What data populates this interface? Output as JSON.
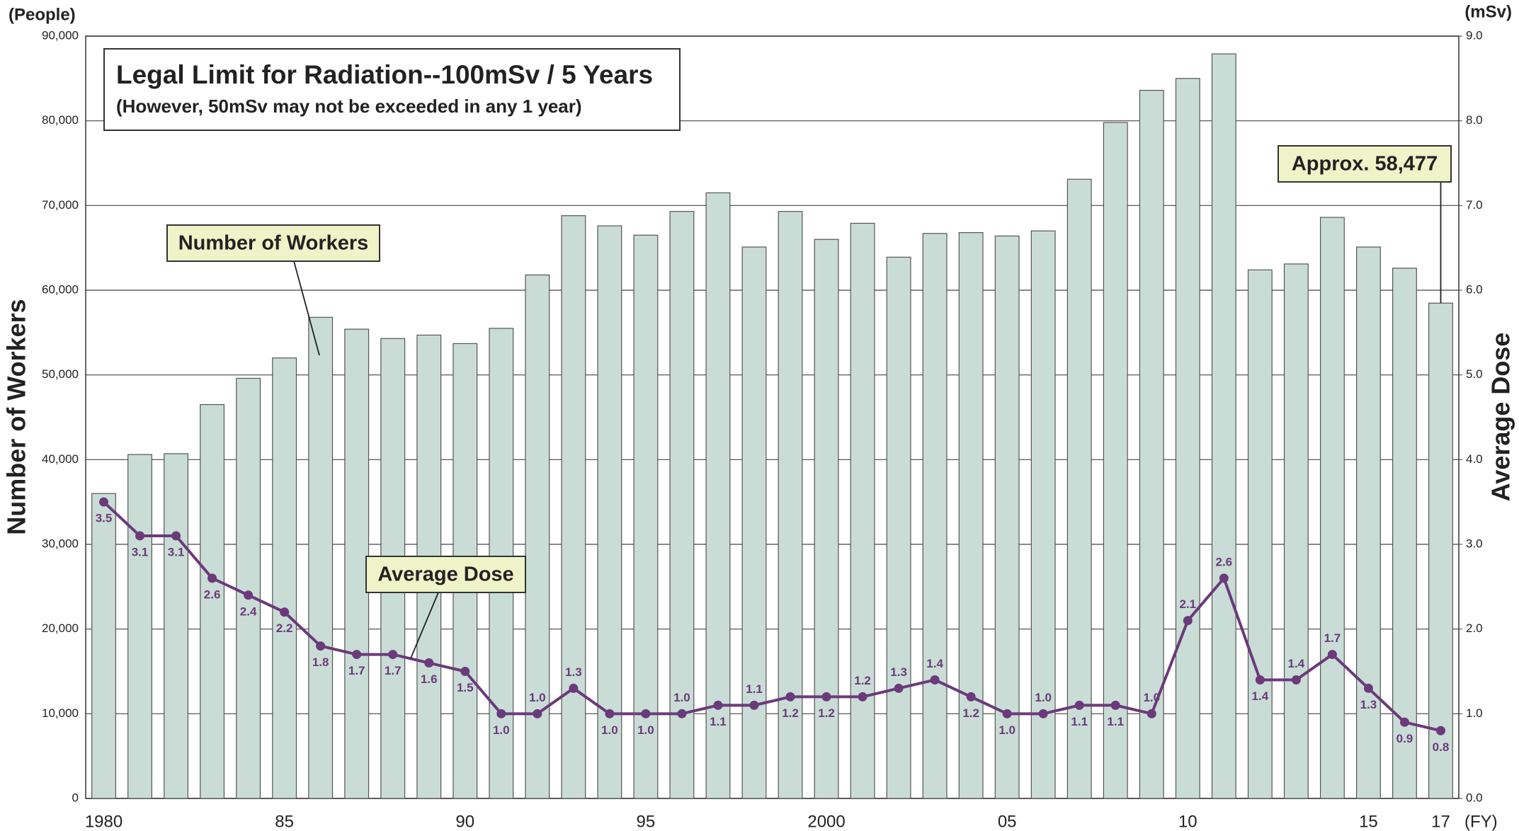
{
  "chart_data": {
    "type": "bar_line",
    "title": "Legal Limit for Radiation--100mSv / 5 Years",
    "subtitle": "(However, 50mSv may not be exceeded in any 1 year)",
    "y_unit": "(People)",
    "y2_unit": "(mSv)",
    "y_label": "Number of Workers",
    "y2_label": "Average Dose",
    "x_unit": "(FY)",
    "annotations": {
      "workers": "Number of Workers",
      "dose": "Average Dose",
      "last": "Approx. 58,477"
    },
    "categories": [
      "1980",
      null,
      null,
      null,
      null,
      "85",
      null,
      null,
      null,
      null,
      "90",
      null,
      null,
      null,
      null,
      "95",
      null,
      null,
      null,
      null,
      "2000",
      null,
      null,
      null,
      null,
      "05",
      null,
      null,
      null,
      null,
      "10",
      null,
      null,
      null,
      null,
      "15",
      null,
      "17"
    ],
    "series": [
      {
        "name": "Number of Workers",
        "type": "bar",
        "color": "#c9ddd6",
        "values": [
          36000,
          40600,
          40700,
          46500,
          49600,
          52000,
          56800,
          55400,
          54300,
          54700,
          53700,
          55500,
          61800,
          68800,
          67600,
          66500,
          69300,
          71500,
          65100,
          69300,
          66000,
          67900,
          63900,
          66700,
          66800,
          66400,
          67000,
          73100,
          79800,
          83600,
          85000,
          87900,
          62400,
          63100,
          68600,
          65100,
          62600,
          58477
        ]
      },
      {
        "name": "Average Dose",
        "type": "line",
        "axis": "y2",
        "color": "#6b3a7a",
        "values": [
          3.5,
          3.1,
          3.1,
          2.6,
          2.4,
          2.2,
          1.8,
          1.7,
          1.7,
          1.6,
          1.5,
          1.0,
          1.0,
          1.3,
          1.0,
          1.0,
          1.0,
          1.1,
          1.1,
          1.2,
          1.2,
          1.2,
          1.3,
          1.4,
          1.2,
          1.0,
          1.0,
          1.1,
          1.1,
          1.0,
          2.1,
          2.6,
          1.4,
          1.4,
          1.7,
          1.3,
          0.9,
          0.8
        ],
        "value_labels": [
          "3.5",
          "3.1",
          "3.1",
          "2.6",
          "2.4",
          "2.2",
          "1.8",
          "1.7",
          "1.7",
          "1.6",
          "1.5",
          "1.0",
          "1.0",
          "1.3",
          "1.0",
          "1.0",
          "1.0",
          "1.1",
          "1.1",
          "1.2",
          "1.2",
          "1.2",
          "1.3",
          "1.4",
          "1.2",
          "1.0",
          "1.0",
          "1.1",
          "1.1",
          "1.0",
          "2.1",
          "2.6",
          "1.4",
          "1.4",
          "1.7",
          "1.3",
          "0.9",
          "0.8"
        ]
      }
    ],
    "ylim": [
      0,
      90000
    ],
    "yticks": [
      0,
      {
        "value": 10000,
        "label": "10,000"
      },
      {
        "value": 20000,
        "label": "20,000"
      },
      {
        "value": 30000,
        "label": "30,000"
      },
      {
        "value": 40000,
        "label": "40,000"
      },
      {
        "value": 50000,
        "label": "50,000"
      },
      {
        "value": 60000,
        "label": "60,000"
      },
      {
        "value": 70000,
        "label": "70,000"
      },
      {
        "value": 80000,
        "label": "80,000"
      },
      {
        "value": 90000,
        "label": "90,000"
      }
    ],
    "y2lim": [
      0,
      9
    ],
    "y2ticks": [
      {
        "value": 0,
        "label": "0.0"
      },
      {
        "value": 1,
        "label": "1.0"
      },
      {
        "value": 2,
        "label": "2.0"
      },
      {
        "value": 3,
        "label": "3.0"
      },
      {
        "value": 4,
        "label": "4.0"
      },
      {
        "value": 5,
        "label": "5.0"
      },
      {
        "value": 6,
        "label": "6.0"
      },
      {
        "value": 7,
        "label": "7.0"
      },
      {
        "value": 8,
        "label": "8.0"
      },
      {
        "value": 9,
        "label": "9.0"
      }
    ],
    "grid": true
  }
}
